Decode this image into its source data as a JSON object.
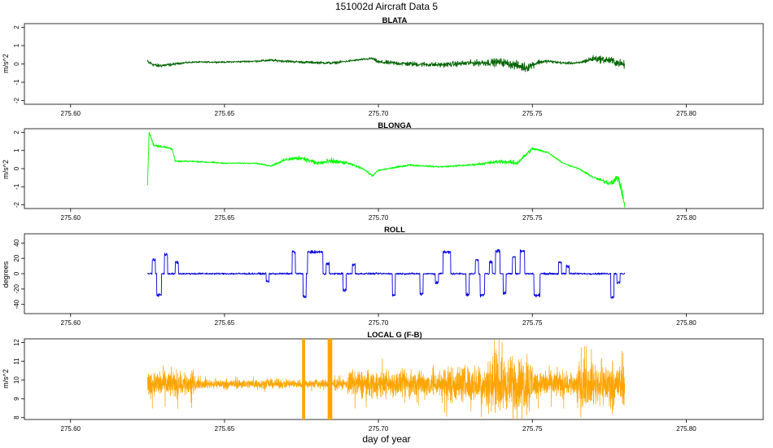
{
  "figure": {
    "title": "151002d   Aircraft Data 5",
    "xlabel": "day of year"
  },
  "chart_data": [
    {
      "type": "line",
      "title": "BLATA",
      "ylabel": "m/s^2",
      "color": "#006400",
      "xlim": [
        275.585,
        275.825
      ],
      "ylim": [
        -2.2,
        2.2
      ],
      "xticks": [
        275.6,
        275.65,
        275.7,
        275.75,
        275.8
      ],
      "xtick_labels": [
        "275.60",
        "275.65",
        "275.70",
        "275.75",
        "275.80"
      ],
      "yticks": [
        -2,
        -1,
        0,
        1,
        2
      ],
      "ytick_labels": [
        "-2",
        "-1",
        "0",
        "1",
        "2"
      ],
      "x_range": [
        275.625,
        275.78
      ],
      "series": [
        {
          "x": [
            275.625,
            275.628,
            275.632,
            275.636,
            275.64,
            275.65,
            275.66,
            275.665,
            275.675,
            275.685,
            275.695,
            275.698,
            275.7,
            275.71,
            275.72,
            275.73,
            275.74,
            275.748,
            275.752,
            275.755,
            275.76,
            275.765,
            275.77,
            275.775,
            275.78
          ],
          "y": [
            0.1,
            -0.1,
            -0.05,
            0.05,
            0.1,
            0.1,
            0.15,
            0.2,
            0.1,
            0.05,
            0.25,
            0.3,
            0.1,
            0.0,
            -0.05,
            0.05,
            0.1,
            -0.2,
            0.1,
            0.15,
            0.05,
            0.05,
            0.3,
            0.2,
            -0.05
          ],
          "noise": [
            0.15,
            0.12,
            0.1,
            0.06,
            0.05,
            0.05,
            0.06,
            0.08,
            0.08,
            0.08,
            0.06,
            0.08,
            0.12,
            0.15,
            0.15,
            0.18,
            0.25,
            0.3,
            0.15,
            0.1,
            0.08,
            0.08,
            0.2,
            0.25,
            0.25
          ]
        }
      ]
    },
    {
      "type": "line",
      "title": "BLONGA",
      "ylabel": "m/s^2",
      "color": "#00ff00",
      "xlim": [
        275.585,
        275.825
      ],
      "ylim": [
        -2.2,
        2.2
      ],
      "xticks": [
        275.6,
        275.65,
        275.7,
        275.75,
        275.8
      ],
      "xtick_labels": [
        "275.60",
        "275.65",
        "275.70",
        "275.75",
        "275.80"
      ],
      "yticks": [
        -2,
        -1,
        0,
        1,
        2
      ],
      "ytick_labels": [
        "-2",
        "-1",
        "0",
        "1",
        "2"
      ],
      "x_range": [
        275.625,
        275.78
      ],
      "series": [
        {
          "x": [
            275.625,
            275.6255,
            275.627,
            275.63,
            275.633,
            275.634,
            275.64,
            275.65,
            275.66,
            275.665,
            275.67,
            275.675,
            275.68,
            275.685,
            275.69,
            275.695,
            275.698,
            275.7,
            275.71,
            275.72,
            275.73,
            275.735,
            275.74,
            275.745,
            275.75,
            275.755,
            275.76,
            275.765,
            275.77,
            275.775,
            275.778,
            275.78
          ],
          "y": [
            -0.9,
            2.0,
            1.3,
            1.2,
            1.1,
            0.4,
            0.4,
            0.3,
            0.3,
            0.15,
            0.5,
            0.6,
            0.3,
            0.4,
            0.3,
            0.0,
            -0.4,
            -0.1,
            0.2,
            0.1,
            0.2,
            0.3,
            0.4,
            0.3,
            1.1,
            0.9,
            0.3,
            0.0,
            -0.5,
            -0.8,
            -0.5,
            -2.0
          ],
          "noise": [
            0.05,
            0.1,
            0.1,
            0.08,
            0.08,
            0.05,
            0.05,
            0.04,
            0.04,
            0.06,
            0.1,
            0.15,
            0.15,
            0.2,
            0.08,
            0.06,
            0.06,
            0.06,
            0.06,
            0.05,
            0.06,
            0.1,
            0.12,
            0.15,
            0.1,
            0.06,
            0.05,
            0.05,
            0.08,
            0.15,
            0.3,
            0.2
          ]
        }
      ]
    },
    {
      "type": "line",
      "title": "ROLL",
      "ylabel": "degrees",
      "color": "#0000dd",
      "xlim": [
        275.585,
        275.825
      ],
      "ylim": [
        -52,
        52
      ],
      "xticks": [
        275.6,
        275.65,
        275.7,
        275.75,
        275.8
      ],
      "xtick_labels": [
        "275.60",
        "275.65",
        "275.70",
        "275.75",
        "275.80"
      ],
      "yticks": [
        -40,
        -20,
        0,
        20,
        40
      ],
      "ytick_labels": [
        "-40",
        "-20",
        "0",
        "20",
        "40"
      ],
      "x_range": [
        275.625,
        275.78
      ],
      "baseline": 0,
      "excursions": [
        {
          "x0": 275.6265,
          "x1": 275.6275,
          "y": 18
        },
        {
          "x0": 275.628,
          "x1": 275.6295,
          "y": -28
        },
        {
          "x0": 275.6305,
          "x1": 275.6315,
          "y": 25
        },
        {
          "x0": 275.634,
          "x1": 275.635,
          "y": 15
        },
        {
          "x0": 275.6635,
          "x1": 275.6645,
          "y": -10
        },
        {
          "x0": 275.672,
          "x1": 275.673,
          "y": 28
        },
        {
          "x0": 275.6755,
          "x1": 275.6765,
          "y": -30
        },
        {
          "x0": 275.677,
          "x1": 275.682,
          "y": 28
        },
        {
          "x0": 275.683,
          "x1": 275.684,
          "y": 13
        },
        {
          "x0": 275.6885,
          "x1": 275.6895,
          "y": -22
        },
        {
          "x0": 275.6915,
          "x1": 275.6925,
          "y": 12
        },
        {
          "x0": 275.7045,
          "x1": 275.7055,
          "y": -28
        },
        {
          "x0": 275.7135,
          "x1": 275.7145,
          "y": -26
        },
        {
          "x0": 275.7185,
          "x1": 275.7195,
          "y": -12
        },
        {
          "x0": 275.721,
          "x1": 275.7235,
          "y": 28
        },
        {
          "x0": 275.7285,
          "x1": 275.7295,
          "y": -28
        },
        {
          "x0": 275.7315,
          "x1": 275.7325,
          "y": 18
        },
        {
          "x0": 275.733,
          "x1": 275.7345,
          "y": -28
        },
        {
          "x0": 275.736,
          "x1": 275.737,
          "y": 15
        },
        {
          "x0": 275.738,
          "x1": 275.7395,
          "y": 30
        },
        {
          "x0": 275.7405,
          "x1": 275.7415,
          "y": -25
        },
        {
          "x0": 275.7435,
          "x1": 275.7445,
          "y": 22
        },
        {
          "x0": 275.746,
          "x1": 275.7475,
          "y": 30
        },
        {
          "x0": 275.7505,
          "x1": 275.7525,
          "y": -28
        },
        {
          "x0": 275.7585,
          "x1": 275.7595,
          "y": 15
        },
        {
          "x0": 275.761,
          "x1": 275.762,
          "y": 10
        },
        {
          "x0": 275.7755,
          "x1": 275.7765,
          "y": -30
        },
        {
          "x0": 275.7775,
          "x1": 275.7785,
          "y": -12
        }
      ]
    },
    {
      "type": "line",
      "title": "LOCAL G (F-B)",
      "ylabel": "m/s^2",
      "color": "#ffa500",
      "xlim": [
        275.585,
        275.825
      ],
      "ylim": [
        7.9,
        12.2
      ],
      "xticks": [
        275.6,
        275.65,
        275.7,
        275.75,
        275.8
      ],
      "xtick_labels": [
        "275.60",
        "275.65",
        "275.70",
        "275.75",
        "275.80"
      ],
      "yticks": [
        8,
        9,
        10,
        11,
        12
      ],
      "ytick_labels": [
        "8",
        "9",
        "10",
        "11",
        "12"
      ],
      "xaxis_label": "day of year",
      "x_range": [
        275.625,
        275.78
      ],
      "baseline": 9.8,
      "noise_profile": [
        {
          "x0": 275.625,
          "x1": 275.64,
          "amp": 0.9
        },
        {
          "x0": 275.64,
          "x1": 275.69,
          "amp": 0.3
        },
        {
          "x0": 275.69,
          "x1": 275.72,
          "amp": 0.9
        },
        {
          "x0": 275.72,
          "x1": 275.735,
          "amp": 1.2
        },
        {
          "x0": 275.735,
          "x1": 275.75,
          "amp": 1.8
        },
        {
          "x0": 275.75,
          "x1": 275.765,
          "amp": 0.9
        },
        {
          "x0": 275.765,
          "x1": 275.78,
          "amp": 1.4
        }
      ],
      "solid_bands": [
        {
          "x0": 275.6752,
          "x1": 275.6762
        },
        {
          "x0": 275.6835,
          "x1": 275.685
        }
      ]
    }
  ]
}
